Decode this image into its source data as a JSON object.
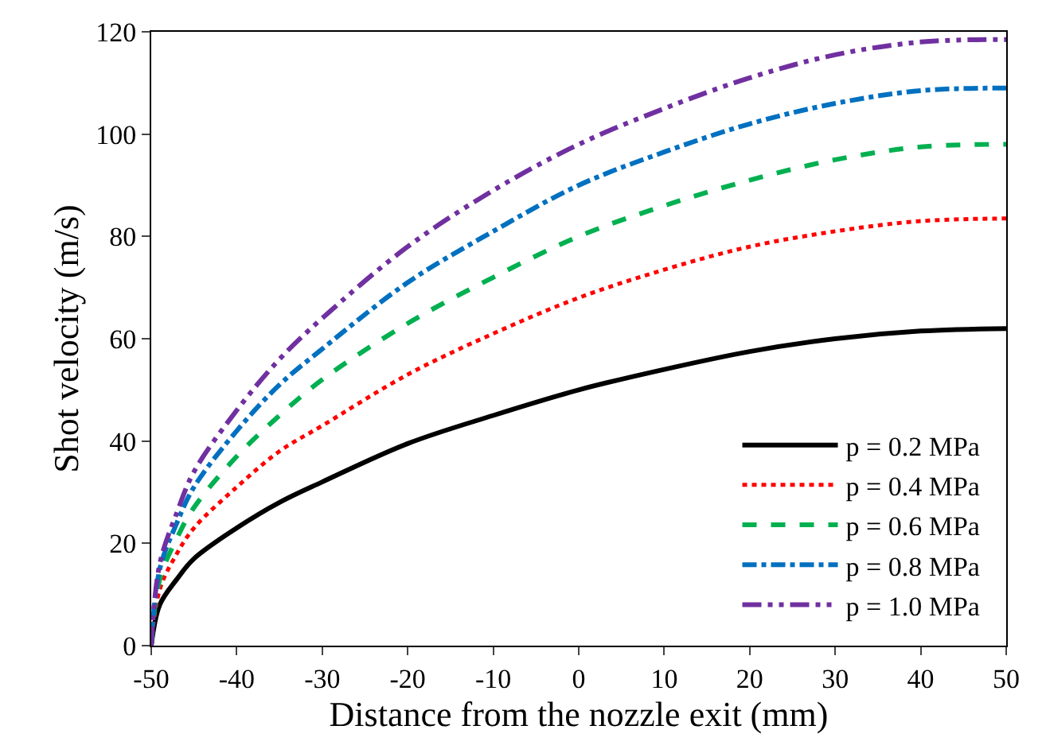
{
  "chart_data": {
    "type": "line",
    "xlabel": "Distance from the nozzle exit (mm)",
    "ylabel": "Shot velocity (m/s)",
    "x": [
      -50,
      -49,
      -47,
      -45,
      -40,
      -35,
      -30,
      -20,
      -10,
      0,
      10,
      20,
      30,
      40,
      50
    ],
    "xlim": [
      -50,
      50
    ],
    "xticks": [
      -50,
      -40,
      -30,
      -20,
      -10,
      0,
      10,
      20,
      30,
      40,
      50
    ],
    "ylim": [
      0,
      120
    ],
    "yticks": [
      0,
      20,
      40,
      60,
      80,
      100,
      120
    ],
    "grid": false,
    "legend": "bottom right",
    "marker": "none",
    "series": [
      {
        "name": "p = 0.2 MPa",
        "color": "#000000",
        "line_style": "solid",
        "values": [
          0,
          8,
          13,
          17,
          23,
          28,
          32,
          39.5,
          45,
          50,
          54,
          57.5,
          60,
          61.5,
          62
        ]
      },
      {
        "name": "p = 0.4 MPa",
        "color": "#ff0000",
        "line_style": "dotted",
        "values": [
          0,
          11,
          18,
          23,
          31,
          38,
          43,
          53,
          61,
          68,
          73.5,
          78,
          81,
          83,
          83.5
        ]
      },
      {
        "name": "p = 0.6 MPa",
        "color": "#00b050",
        "line_style": "dashed",
        "values": [
          0,
          13,
          21,
          27,
          37,
          45,
          52,
          63,
          72,
          80,
          86,
          91,
          95,
          97.5,
          98
        ]
      },
      {
        "name": "p = 0.8 MPa",
        "color": "#0070c0",
        "line_style": "dashdot",
        "values": [
          0,
          15,
          24,
          31,
          42,
          51,
          58,
          71,
          81,
          90,
          96.5,
          102,
          106,
          108.5,
          109
        ]
      },
      {
        "name": "p = 1.0 MPa",
        "color": "#7030a0",
        "line_style": "longdashdotdot",
        "values": [
          0,
          16,
          26,
          34,
          46,
          56,
          64,
          78,
          89,
          98,
          105,
          111,
          115.5,
          118,
          118.5
        ]
      }
    ]
  }
}
